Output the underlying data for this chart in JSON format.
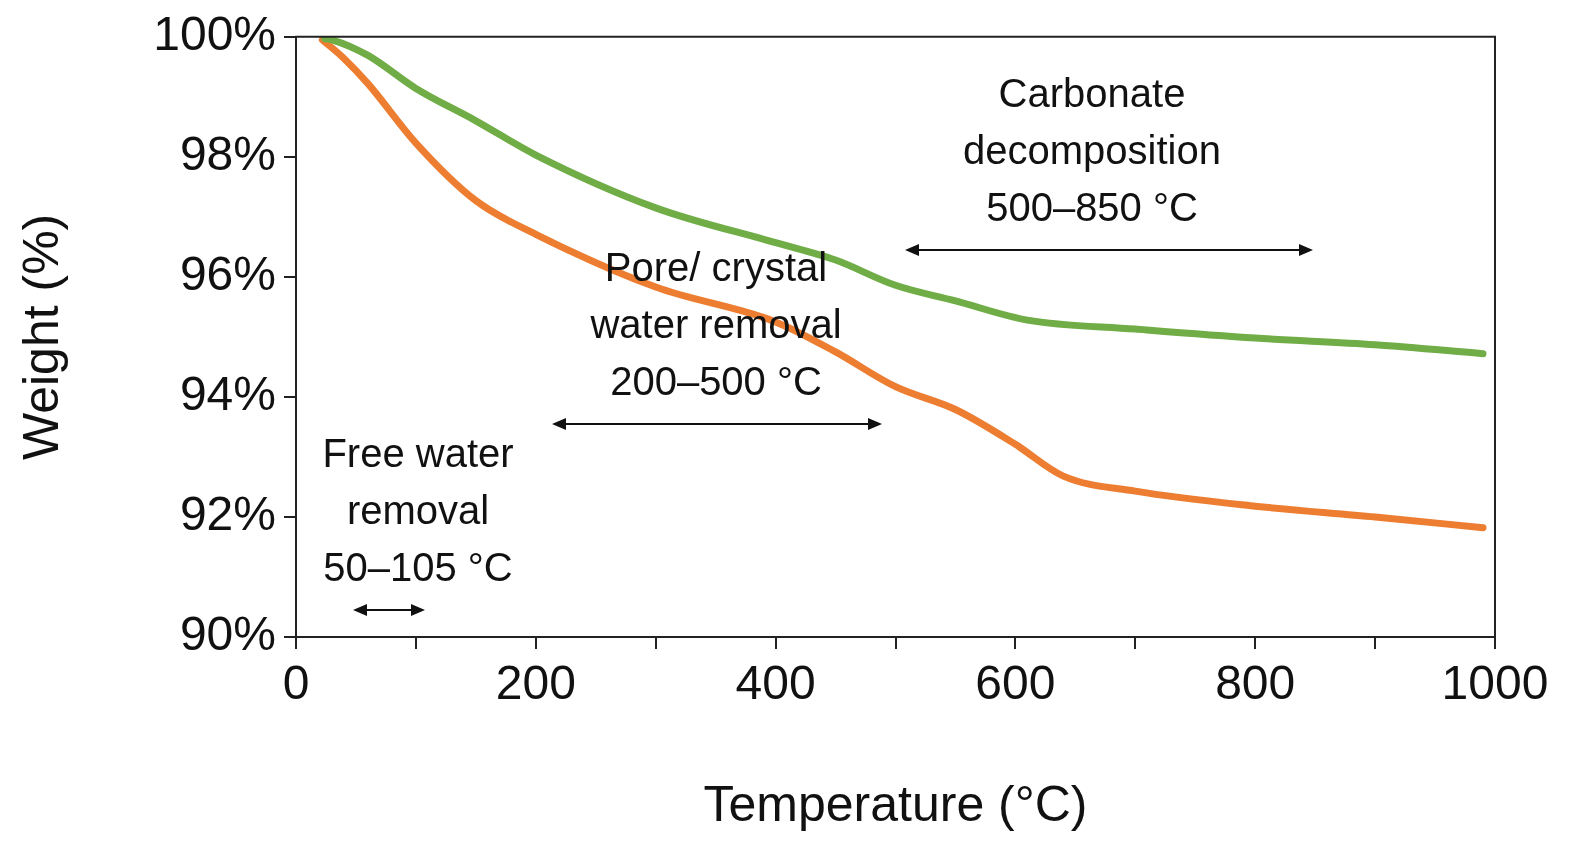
{
  "chart_data": {
    "type": "line",
    "xlabel": "Temperature (°C)",
    "ylabel": "Weight (%)",
    "xlim": [
      0,
      1000
    ],
    "xticks": [
      0,
      {
        "value": 100,
        "label": null
      },
      200,
      {
        "value": 300,
        "label": null
      },
      400,
      {
        "value": 500,
        "label": null
      },
      600,
      {
        "value": 700,
        "label": null
      },
      800,
      {
        "value": 900,
        "label": null
      },
      1000
    ],
    "ylim": [
      90,
      100
    ],
    "yticks": [
      {
        "value": 90,
        "label": "90%"
      },
      {
        "value": 92,
        "label": "92%"
      },
      {
        "value": 94,
        "label": "94%"
      },
      {
        "value": 96,
        "label": "96%"
      },
      {
        "value": 98,
        "label": "98%"
      },
      {
        "value": 100,
        "label": "100%"
      }
    ],
    "grid": false,
    "legend": false,
    "marker": "none",
    "line_style": "solid",
    "series": [
      {
        "color": "#70ad47",
        "x": [
          24,
          30,
          60,
          100,
          150,
          200,
          300,
          400,
          450,
          500,
          550,
          610,
          700,
          800,
          900,
          990
        ],
        "values": [
          99.97,
          99.95,
          99.69,
          99.14,
          98.6,
          98.03,
          97.15,
          96.57,
          96.28,
          95.86,
          95.6,
          95.28,
          95.13,
          94.98,
          94.87,
          94.72
        ]
      },
      {
        "color": "#ed7d31",
        "x": [
          22,
          40,
          60,
          100,
          150,
          200,
          300,
          400,
          450,
          500,
          550,
          600,
          640,
          700,
          800,
          900,
          990
        ],
        "values": [
          99.95,
          99.64,
          99.22,
          98.23,
          97.27,
          96.71,
          95.83,
          95.25,
          94.75,
          94.17,
          93.79,
          93.21,
          92.68,
          92.43,
          92.18,
          92.0,
          91.82
        ]
      }
    ],
    "annotations": [
      "Free water\nremoval\n50–105 °C",
      "Pore/ crystal\nwater removal\n200–500 °C",
      "Carbonate\ndecomposition\n500–850 °C"
    ]
  }
}
